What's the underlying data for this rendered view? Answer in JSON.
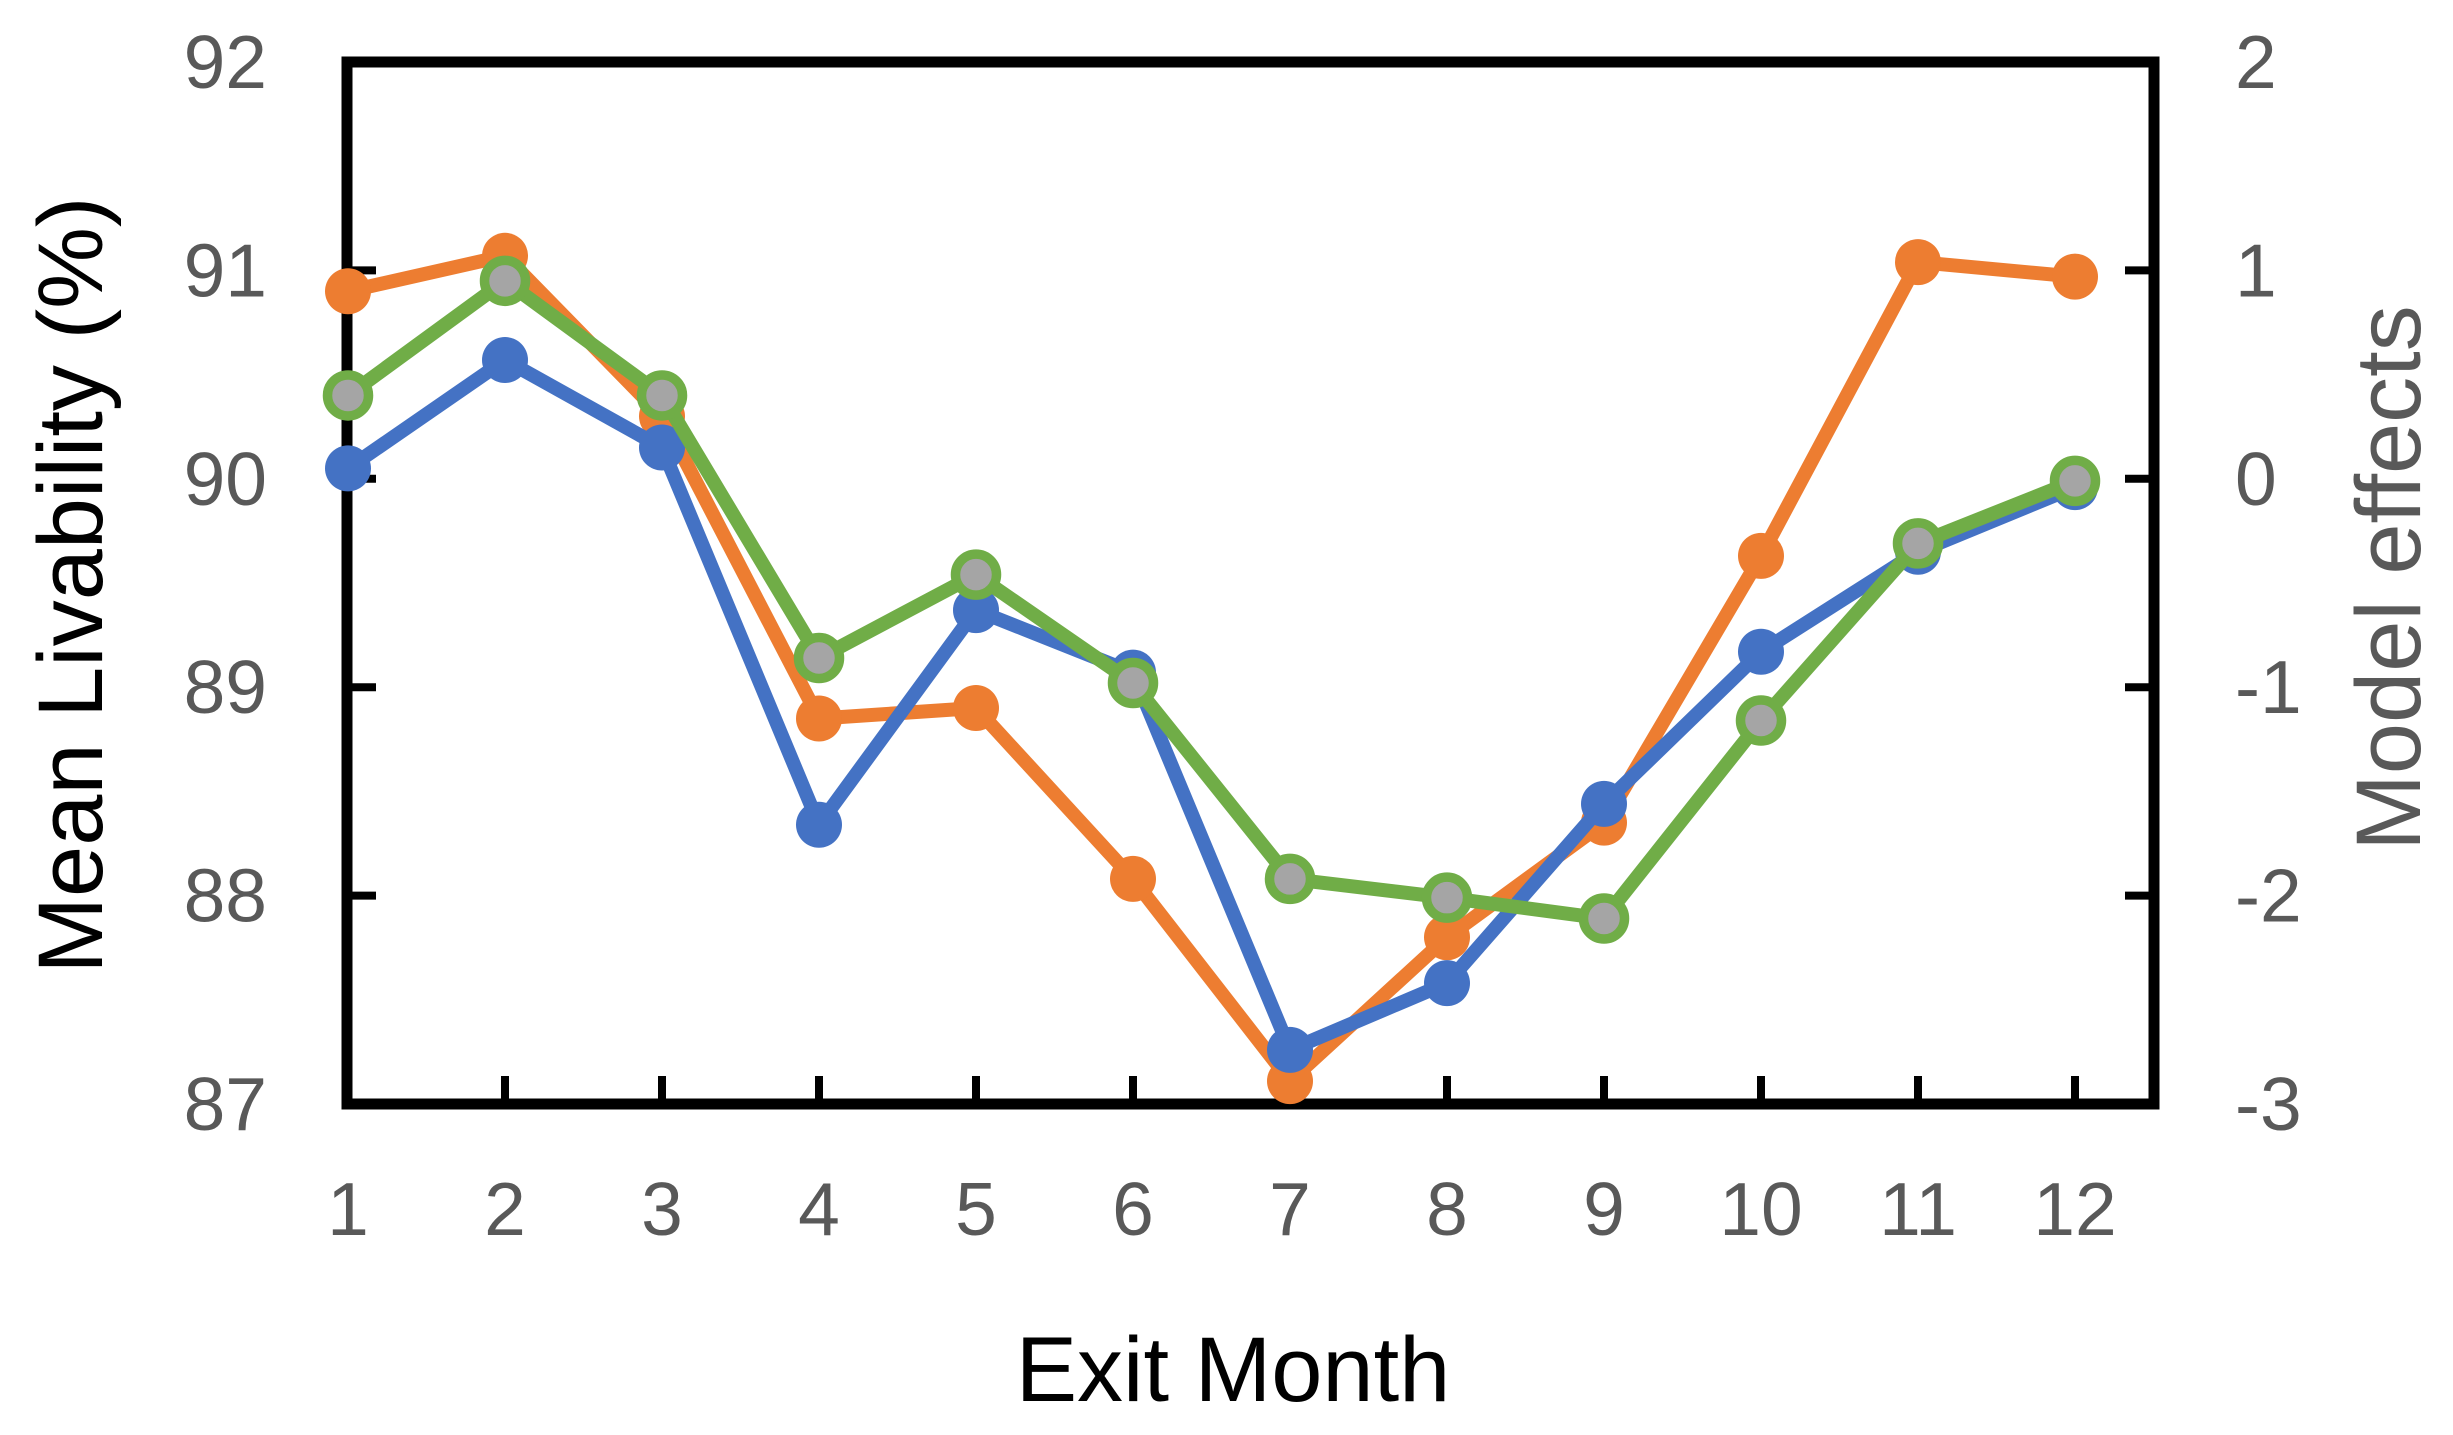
{
  "chart_data": {
    "type": "line",
    "x": [
      1,
      2,
      3,
      4,
      5,
      6,
      7,
      8,
      9,
      10,
      11,
      12
    ],
    "xlabel": "Exit Month",
    "ylabel_left": "Mean Livability (%)",
    "ylabel_right": "Model effects",
    "ylim_left": [
      87,
      92
    ],
    "yticks_left": [
      92,
      91,
      90,
      89,
      88,
      87
    ],
    "ylim_right": [
      -3,
      2
    ],
    "yticks_right": [
      2,
      1,
      0,
      -1,
      -2,
      -3
    ],
    "grid": false,
    "legend": "none",
    "right_axis_relation": "model effect = mean livability - 90",
    "series": [
      {
        "name": "orange",
        "color": "#ED7D31",
        "marker": "circle",
        "marker_fill": "#ED7D31",
        "values": [
          90.9,
          91.07,
          90.3,
          88.85,
          88.9,
          88.08,
          87.11,
          87.8,
          88.35,
          89.63,
          91.04,
          90.97
        ]
      },
      {
        "name": "blue",
        "color": "#4472C4",
        "marker": "circle",
        "marker_fill": "#4472C4",
        "values": [
          90.05,
          90.57,
          90.15,
          88.34,
          89.37,
          89.07,
          87.26,
          87.58,
          88.44,
          89.17,
          89.65,
          89.96
        ]
      },
      {
        "name": "green",
        "color": "#70AD47",
        "marker": "circle",
        "marker_fill": "#A5A5A5",
        "marker_stroke": "#70AD47",
        "values": [
          90.4,
          90.95,
          90.4,
          89.14,
          89.54,
          89.02,
          88.08,
          87.99,
          87.89,
          88.84,
          89.69,
          89.99
        ]
      }
    ]
  },
  "colors": {
    "axis": "#000000",
    "tick_labels": "#595959",
    "left_title": "#000000",
    "bottom_title": "#000000",
    "right_title": "#595959",
    "background": "#FFFFFF"
  }
}
